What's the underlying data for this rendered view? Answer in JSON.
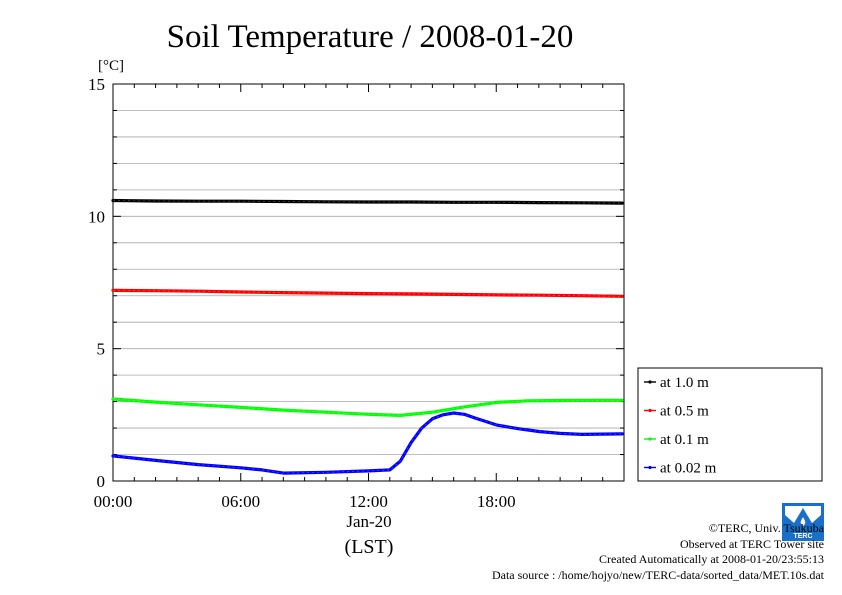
{
  "chart_data": {
    "type": "line",
    "title": "Soil Temperature / 2008-01-20",
    "ylabel": "[°C]",
    "xlabel": "(LST)",
    "date_label": "Jan-20",
    "ylim": [
      0,
      15
    ],
    "xlim": [
      "00:00",
      "24:00"
    ],
    "yticks": [
      0,
      5,
      10,
      15
    ],
    "xticks": [
      "00:00",
      "06:00",
      "12:00",
      "18:00"
    ],
    "grid": true,
    "legend_position": "right-bottom",
    "series": [
      {
        "name": "at 1.0 m",
        "color": "#000000",
        "x": [
          "00:00",
          "02:00",
          "04:00",
          "06:00",
          "08:00",
          "10:00",
          "12:00",
          "14:00",
          "16:00",
          "18:00",
          "20:00",
          "22:00",
          "23:55"
        ],
        "values": [
          10.6,
          10.58,
          10.57,
          10.57,
          10.56,
          10.55,
          10.54,
          10.54,
          10.53,
          10.53,
          10.52,
          10.51,
          10.5
        ]
      },
      {
        "name": "at 0.5 m",
        "color": "#ff0000",
        "x": [
          "00:00",
          "02:00",
          "04:00",
          "06:00",
          "08:00",
          "10:00",
          "12:00",
          "14:00",
          "16:00",
          "18:00",
          "20:00",
          "22:00",
          "23:55"
        ],
        "values": [
          7.2,
          7.19,
          7.17,
          7.14,
          7.12,
          7.1,
          7.08,
          7.07,
          7.05,
          7.03,
          7.02,
          7.0,
          6.98
        ]
      },
      {
        "name": "at 0.1 m",
        "color": "#00ff00",
        "x": [
          "00:00",
          "02:00",
          "04:00",
          "06:00",
          "08:00",
          "10:00",
          "12:00",
          "13:30",
          "15:00",
          "16:30",
          "18:00",
          "19:30",
          "21:00",
          "22:30",
          "23:55"
        ],
        "values": [
          3.1,
          2.98,
          2.88,
          2.78,
          2.68,
          2.6,
          2.52,
          2.48,
          2.6,
          2.8,
          2.97,
          3.03,
          3.04,
          3.05,
          3.05
        ]
      },
      {
        "name": "at 0.02 m",
        "color": "#0000ff",
        "x": [
          "00:00",
          "02:00",
          "04:00",
          "06:00",
          "07:00",
          "08:00",
          "10:00",
          "12:00",
          "13:00",
          "13:30",
          "14:00",
          "14:30",
          "15:00",
          "15:30",
          "16:00",
          "16:30",
          "17:00",
          "18:00",
          "19:00",
          "20:00",
          "21:00",
          "22:00",
          "23:55"
        ],
        "values": [
          0.95,
          0.78,
          0.62,
          0.5,
          0.42,
          0.3,
          0.33,
          0.38,
          0.42,
          0.75,
          1.45,
          2.0,
          2.35,
          2.5,
          2.57,
          2.52,
          2.38,
          2.12,
          1.98,
          1.87,
          1.8,
          1.76,
          1.78
        ]
      }
    ]
  },
  "credits": {
    "copyright": "©TERC, Univ. Tsukuba",
    "observed": "Observed at TERC Tower site",
    "created": "Created Automatically at 2008-01-20/23:55:13",
    "source": "Data source : /home/hojyo/new/TERC-data/sorted_data/MET.10s.dat"
  },
  "logo_text": "TERC"
}
